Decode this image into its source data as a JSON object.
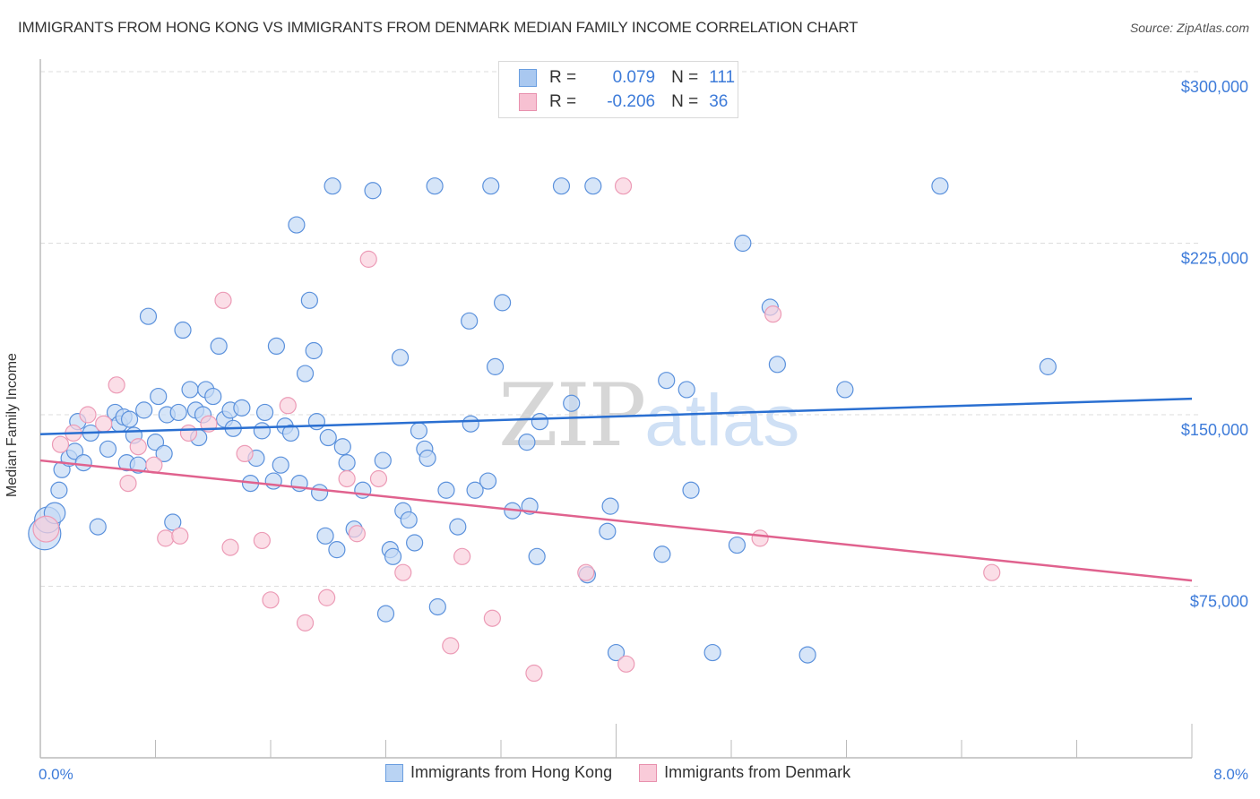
{
  "header": {
    "title": "IMMIGRANTS FROM HONG KONG VS IMMIGRANTS FROM DENMARK MEDIAN FAMILY INCOME CORRELATION CHART",
    "source": "Source: ZipAtlas.com"
  },
  "watermark": {
    "zip": "ZIP",
    "atlas": "atlas"
  },
  "legend": {
    "rows": [
      {
        "series": "Immigrants from Hong Kong",
        "r_label": "R =",
        "r_value": "0.079",
        "n_label": "N =",
        "n_value": "111",
        "color": "#a9c8f0",
        "border": "#6a9ee0"
      },
      {
        "series": "Immigrants from Denmark",
        "r_label": "R =",
        "r_value": "-0.206",
        "n_label": "N =",
        "n_value": "36",
        "color": "#f7c1d2",
        "border": "#e891ae"
      }
    ]
  },
  "colors": {
    "blue_fill": "#c5daf5",
    "blue_stroke": "#5b91dc",
    "blue_line": "#2a6fd1",
    "pink_fill": "#f9d0dd",
    "pink_stroke": "#ec9bb6",
    "pink_line": "#e0628e",
    "tick_text": "#3d7bd9",
    "grid": "#dddddd",
    "axis": "#bbbbbb"
  },
  "chart_data": {
    "type": "scatter",
    "title": "IMMIGRANTS FROM HONG KONG VS IMMIGRANTS FROM DENMARK MEDIAN FAMILY INCOME CORRELATION CHART",
    "xlabel": "",
    "ylabel": "Median Family Income",
    "xlim": [
      0,
      8
    ],
    "ylim": [
      0,
      305000
    ],
    "x_tick_labels": [
      "0.0%",
      "8.0%"
    ],
    "x_tick_positions": [
      0,
      0.8,
      1.6,
      2.4,
      3.2,
      4.0,
      4.8,
      5.6,
      6.4,
      7.2,
      8.0
    ],
    "y_ticks": [
      75000,
      150000,
      225000,
      300000
    ],
    "y_tick_labels": [
      "$75,000",
      "$150,000",
      "$225,000",
      "$300,000"
    ],
    "grid": true,
    "legend_position": "top-center",
    "series": [
      {
        "name": "Immigrants from Hong Kong",
        "r": 0.079,
        "n": 111,
        "trend": {
          "x": [
            0,
            8
          ],
          "y": [
            141500,
            157000
          ]
        },
        "points": [
          [
            0.03,
            98000,
            2
          ],
          [
            0.05,
            104000,
            1.6
          ],
          [
            0.1,
            107000,
            1.3
          ],
          [
            0.13,
            117000,
            1
          ],
          [
            0.15,
            126000,
            1
          ],
          [
            0.2,
            131000,
            1
          ],
          [
            0.24,
            134000,
            1
          ],
          [
            0.26,
            147000,
            1
          ],
          [
            0.3,
            129000,
            1
          ],
          [
            0.35,
            142000,
            1
          ],
          [
            0.4,
            101000,
            1
          ],
          [
            0.47,
            135000,
            1
          ],
          [
            0.52,
            151000,
            1
          ],
          [
            0.55,
            146000,
            1
          ],
          [
            0.58,
            149000,
            1
          ],
          [
            0.6,
            129000,
            1
          ],
          [
            0.62,
            148000,
            1
          ],
          [
            0.65,
            141000,
            1
          ],
          [
            0.68,
            128000,
            1
          ],
          [
            0.72,
            152000,
            1
          ],
          [
            0.75,
            193000,
            1
          ],
          [
            0.8,
            138000,
            1
          ],
          [
            0.82,
            158000,
            1
          ],
          [
            0.86,
            133000,
            1
          ],
          [
            0.88,
            150000,
            1
          ],
          [
            0.92,
            103000,
            1
          ],
          [
            0.96,
            151000,
            1
          ],
          [
            0.99,
            187000,
            1
          ],
          [
            1.04,
            161000,
            1
          ],
          [
            1.08,
            152000,
            1
          ],
          [
            1.1,
            140000,
            1
          ],
          [
            1.13,
            150000,
            1
          ],
          [
            1.15,
            161000,
            1
          ],
          [
            1.2,
            158000,
            1
          ],
          [
            1.24,
            180000,
            1
          ],
          [
            1.28,
            148000,
            1
          ],
          [
            1.32,
            152000,
            1
          ],
          [
            1.34,
            144000,
            1
          ],
          [
            1.4,
            153000,
            1
          ],
          [
            1.46,
            120000,
            1
          ],
          [
            1.5,
            131000,
            1
          ],
          [
            1.54,
            143000,
            1
          ],
          [
            1.56,
            151000,
            1
          ],
          [
            1.62,
            121000,
            1
          ],
          [
            1.64,
            180000,
            1
          ],
          [
            1.67,
            128000,
            1
          ],
          [
            1.7,
            145000,
            1
          ],
          [
            1.74,
            142000,
            1
          ],
          [
            1.78,
            233000,
            1
          ],
          [
            1.8,
            120000,
            1
          ],
          [
            1.84,
            168000,
            1
          ],
          [
            1.87,
            200000,
            1
          ],
          [
            1.9,
            178000,
            1
          ],
          [
            1.92,
            147000,
            1
          ],
          [
            1.94,
            116000,
            1
          ],
          [
            1.98,
            97000,
            1
          ],
          [
            2.0,
            140000,
            1
          ],
          [
            2.03,
            250000,
            1
          ],
          [
            2.06,
            91000,
            1
          ],
          [
            2.1,
            136000,
            1
          ],
          [
            2.13,
            129000,
            1
          ],
          [
            2.18,
            100000,
            1
          ],
          [
            2.24,
            117000,
            1
          ],
          [
            2.31,
            248000,
            1
          ],
          [
            2.38,
            130000,
            1
          ],
          [
            2.4,
            63000,
            1
          ],
          [
            2.43,
            91000,
            1
          ],
          [
            2.45,
            88000,
            1
          ],
          [
            2.5,
            175000,
            1
          ],
          [
            2.52,
            108000,
            1
          ],
          [
            2.56,
            104000,
            1
          ],
          [
            2.6,
            94000,
            1
          ],
          [
            2.63,
            143000,
            1
          ],
          [
            2.67,
            135000,
            1
          ],
          [
            2.69,
            131000,
            1
          ],
          [
            2.74,
            250000,
            1
          ],
          [
            2.76,
            66000,
            1
          ],
          [
            2.82,
            117000,
            1
          ],
          [
            2.9,
            101000,
            1
          ],
          [
            2.98,
            191000,
            1
          ],
          [
            2.99,
            146000,
            1
          ],
          [
            3.02,
            117000,
            1
          ],
          [
            3.11,
            121000,
            1
          ],
          [
            3.13,
            250000,
            1
          ],
          [
            3.16,
            171000,
            1
          ],
          [
            3.21,
            199000,
            1
          ],
          [
            3.28,
            108000,
            1
          ],
          [
            3.38,
            138000,
            1
          ],
          [
            3.4,
            110000,
            1
          ],
          [
            3.45,
            88000,
            1
          ],
          [
            3.47,
            147000,
            1
          ],
          [
            3.62,
            250000,
            1
          ],
          [
            3.69,
            155000,
            1
          ],
          [
            3.8,
            80000,
            1
          ],
          [
            3.84,
            250000,
            1
          ],
          [
            3.94,
            99000,
            1
          ],
          [
            3.96,
            110000,
            1
          ],
          [
            4.0,
            46000,
            1
          ],
          [
            4.32,
            89000,
            1
          ],
          [
            4.35,
            165000,
            1
          ],
          [
            4.49,
            161000,
            1
          ],
          [
            4.52,
            117000,
            1
          ],
          [
            4.67,
            46000,
            1
          ],
          [
            4.84,
            93000,
            1
          ],
          [
            4.88,
            225000,
            1
          ],
          [
            5.07,
            197000,
            1
          ],
          [
            5.12,
            172000,
            1
          ],
          [
            5.33,
            45000,
            1
          ],
          [
            5.59,
            161000,
            1
          ],
          [
            6.25,
            250000,
            1
          ],
          [
            7.0,
            171000,
            1
          ]
        ]
      },
      {
        "name": "Immigrants from Denmark",
        "r": -0.206,
        "n": 36,
        "trend": {
          "x": [
            0,
            8
          ],
          "y": [
            130000,
            77500
          ]
        },
        "points": [
          [
            0.04,
            100000,
            1.6
          ],
          [
            0.14,
            137000,
            1
          ],
          [
            0.23,
            142000,
            1
          ],
          [
            0.33,
            150000,
            1
          ],
          [
            0.44,
            146000,
            1
          ],
          [
            0.53,
            163000,
            1
          ],
          [
            0.61,
            120000,
            1
          ],
          [
            0.68,
            136000,
            1
          ],
          [
            0.79,
            128000,
            1
          ],
          [
            0.87,
            96000,
            1
          ],
          [
            0.97,
            97000,
            1
          ],
          [
            1.03,
            142000,
            1
          ],
          [
            1.17,
            146000,
            1
          ],
          [
            1.27,
            200000,
            1
          ],
          [
            1.32,
            92000,
            1
          ],
          [
            1.42,
            133000,
            1
          ],
          [
            1.54,
            95000,
            1
          ],
          [
            1.6,
            69000,
            1
          ],
          [
            1.72,
            154000,
            1
          ],
          [
            1.84,
            59000,
            1
          ],
          [
            1.99,
            70000,
            1
          ],
          [
            2.13,
            122000,
            1
          ],
          [
            2.2,
            98000,
            1
          ],
          [
            2.28,
            218000,
            1
          ],
          [
            2.35,
            122000,
            1
          ],
          [
            2.52,
            81000,
            1
          ],
          [
            2.85,
            49000,
            1
          ],
          [
            2.93,
            88000,
            1
          ],
          [
            3.14,
            61000,
            1
          ],
          [
            3.43,
            37000,
            1
          ],
          [
            3.79,
            81000,
            1
          ],
          [
            4.07,
            41000,
            1
          ],
          [
            4.05,
            250000,
            1
          ],
          [
            5.0,
            96000,
            1
          ],
          [
            5.09,
            194000,
            1
          ],
          [
            6.61,
            81000,
            1
          ]
        ]
      }
    ]
  }
}
